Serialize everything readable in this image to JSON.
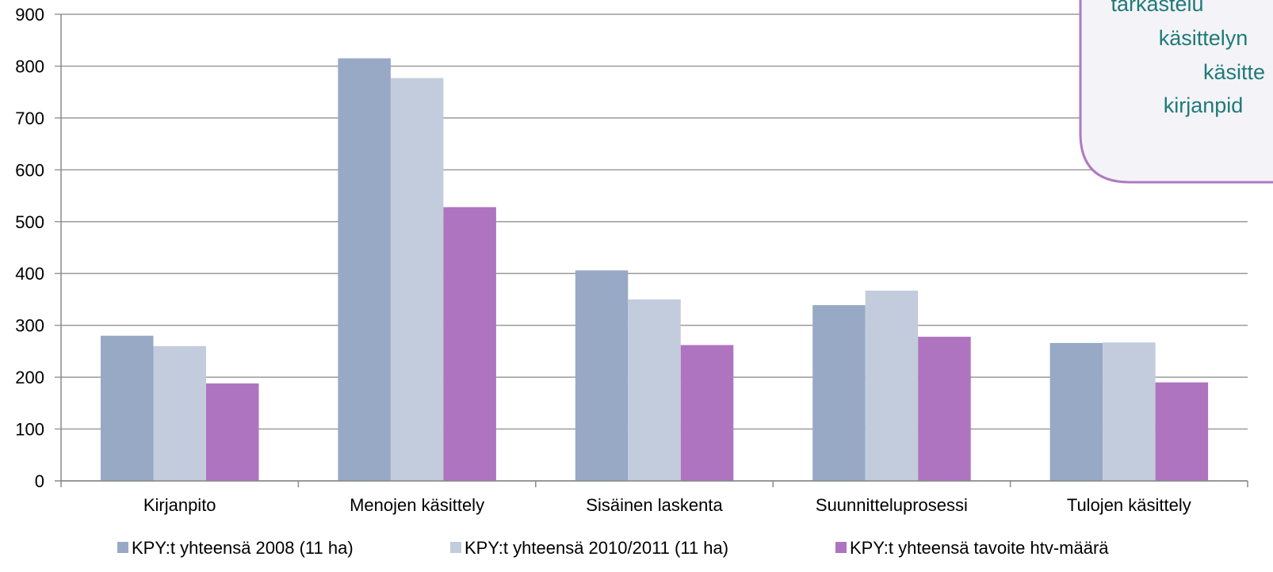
{
  "colors": {
    "series_2008": "#98a9c5",
    "series_2010_2011": "#c3ccdc",
    "series_target": "#af74c0",
    "gridline": "#9a9a9a",
    "axis": "#8a8a8a",
    "callout_text": "#1f7a78",
    "callout_border": "#b07ac0",
    "callout_fill": "#f4f3f8"
  },
  "callout": {
    "lines": [
      "tarkastelu",
      "käsittelyn",
      "käsitte",
      "kirjanpid"
    ]
  },
  "chart_data": {
    "type": "bar",
    "categories": [
      "Kirjanpito",
      "Menojen käsittely",
      "Sisäinen laskenta",
      "Suunnitteluprosessi",
      "Tulojen käsittely"
    ],
    "series": [
      {
        "name": "KPY:t yhteensä 2008 (11 ha)",
        "values": [
          280,
          815,
          406,
          339,
          266
        ]
      },
      {
        "name": "KPY:t yhteensä 2010/2011 (11 ha)",
        "values": [
          260,
          777,
          350,
          367,
          267
        ]
      },
      {
        "name": "KPY:t yhteensä tavoite htv-määrä",
        "values": [
          188,
          528,
          262,
          278,
          190
        ]
      }
    ],
    "ylim": [
      0,
      900
    ],
    "yticks": [
      "0",
      "100",
      "200",
      "300",
      "400",
      "500",
      "600",
      "700",
      "800",
      "900"
    ],
    "grid": true,
    "legend_position": "bottom"
  }
}
